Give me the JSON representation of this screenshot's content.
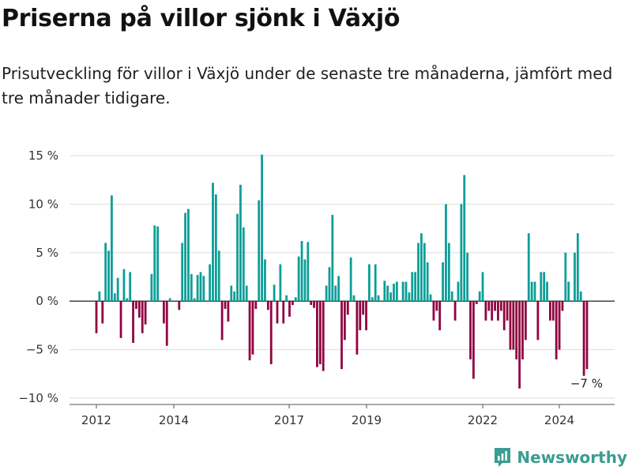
{
  "header": {
    "title": "Priserna på villor sjönk i Växjö",
    "subtitle": "Prisutveckling för villor i Växjö under de senaste tre månaderna, jämfört med tre månader tidigare."
  },
  "brand": {
    "name": "Newsworthy",
    "icon": "newsworthy-logo-icon"
  },
  "colors": {
    "positive": "#0c9e97",
    "negative": "#8f0340",
    "grid": "#dddddd",
    "zero": "#333333"
  },
  "chart_data": {
    "type": "bar",
    "title": "",
    "xlabel": "",
    "ylabel": "",
    "ylim": [
      -10,
      15
    ],
    "yticks": [
      15,
      10,
      5,
      0,
      -5,
      -10
    ],
    "ytick_labels": [
      "15 %",
      "10 %",
      "5 %",
      "0 %",
      "−5 %",
      "−10 %"
    ],
    "xticks": [
      "2012",
      "2014",
      "2017",
      "2019",
      "2022",
      "2024"
    ],
    "grid": true,
    "last_value_label": "−7 %",
    "values": [
      -3.3,
      1.0,
      -2.3,
      6.0,
      5.2,
      10.9,
      0.8,
      2.4,
      -3.8,
      3.3,
      0.3,
      3.0,
      -4.3,
      -0.8,
      -1.7,
      -3.3,
      -2.4,
      0.0,
      2.8,
      7.8,
      7.7,
      0.0,
      -2.3,
      -4.6,
      0.3,
      0.0,
      0.0,
      -0.9,
      6.0,
      9.1,
      9.5,
      2.8,
      0.3,
      2.7,
      3.0,
      2.6,
      0.0,
      3.8,
      12.2,
      11.0,
      5.2,
      -4.0,
      -0.8,
      -2.1,
      1.6,
      1.0,
      9.0,
      12.0,
      7.6,
      1.6,
      -6.1,
      -5.5,
      -0.8,
      10.4,
      15.1,
      4.3,
      -0.9,
      -6.5,
      1.7,
      -2.3,
      3.8,
      -2.3,
      0.6,
      -1.6,
      -0.4,
      0.4,
      4.6,
      6.2,
      4.3,
      6.1,
      -0.4,
      -0.7,
      -6.8,
      -6.5,
      -7.2,
      1.6,
      3.5,
      8.9,
      1.6,
      2.6,
      -7.0,
      -4.0,
      -1.4,
      4.5,
      0.6,
      -5.5,
      -3.0,
      -1.4,
      -3.0,
      3.8,
      0.4,
      3.8,
      0.6,
      0.0,
      2.1,
      1.6,
      0.9,
      1.8,
      2.0,
      0.0,
      2.0,
      2.0,
      0.9,
      3.0,
      3.0,
      6.0,
      7.0,
      6.0,
      4.0,
      0.7,
      -2.0,
      -1.0,
      -3.0,
      4.0,
      10.0,
      6.0,
      1.0,
      -2.0,
      2.0,
      10.0,
      13.0,
      5.0,
      -6.0,
      -8.0,
      -0.3,
      1.0,
      3.0,
      -2.0,
      -1.0,
      -2.0,
      -1.0,
      -2.0,
      -1.0,
      -3.0,
      -2.0,
      -5.0,
      -5.0,
      -6.0,
      -9.0,
      -6.0,
      -4.0,
      7.0,
      2.0,
      2.0,
      -4.0,
      3.0,
      3.0,
      2.0,
      -2.0,
      -2.0,
      -6.0,
      -5.0,
      -1.0,
      5.0,
      2.0,
      0.0,
      5.0,
      7.0,
      1.0,
      -7.7,
      -7.0
    ]
  }
}
